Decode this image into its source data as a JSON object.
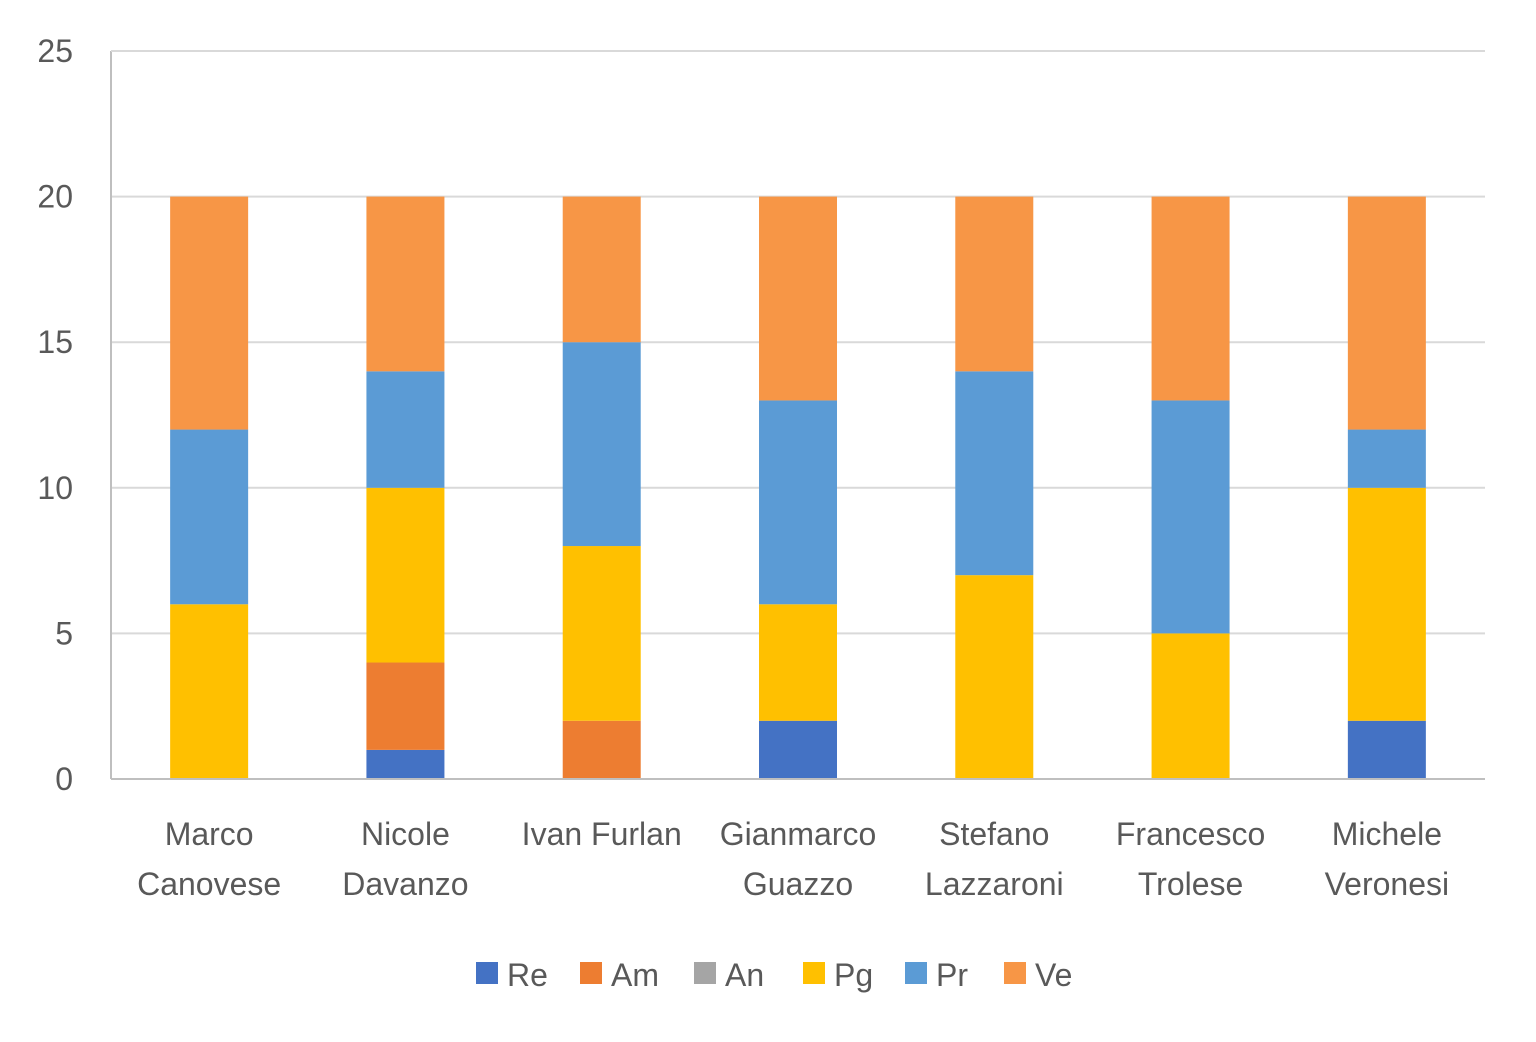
{
  "chart_data": {
    "type": "bar",
    "stacked": true,
    "categories": [
      [
        "Marco",
        "Canovese"
      ],
      [
        "Nicole",
        "Davanzo"
      ],
      [
        "Ivan Furlan"
      ],
      [
        "Gianmarco",
        "Guazzo"
      ],
      [
        "Stefano",
        "Lazzaroni"
      ],
      [
        "Francesco",
        "Trolese"
      ],
      [
        "Michele",
        "Veronesi"
      ]
    ],
    "series": [
      {
        "name": "Re",
        "color": "#4472C4",
        "values": [
          0,
          1,
          0,
          2,
          0,
          0,
          2
        ]
      },
      {
        "name": "Am",
        "color": "#ED7D31",
        "values": [
          0,
          3,
          2,
          0,
          0,
          0,
          0
        ]
      },
      {
        "name": "An",
        "color": "#A5A5A5",
        "values": [
          0,
          0,
          0,
          0,
          0,
          0,
          0
        ]
      },
      {
        "name": "Pg",
        "color": "#FFC000",
        "values": [
          6,
          6,
          6,
          4,
          7,
          5,
          8
        ]
      },
      {
        "name": "Pr",
        "color": "#5B9BD5",
        "values": [
          6,
          4,
          7,
          7,
          7,
          8,
          2
        ]
      },
      {
        "name": "Ve",
        "color": "#F79646",
        "values": [
          8,
          6,
          5,
          7,
          6,
          7,
          8
        ]
      }
    ],
    "ylim": [
      0,
      25
    ],
    "yticks": [
      "0",
      "5",
      "10",
      "15",
      "20",
      "25"
    ],
    "grid": true,
    "legend_position": "bottom"
  }
}
